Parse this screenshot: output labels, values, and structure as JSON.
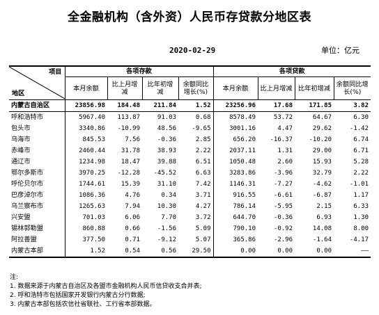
{
  "title": "全金融机构（含外资）人民币存贷款分地区表",
  "date": "2020-02-29",
  "unit": "单位：亿元",
  "header": {
    "corner_top": "项目",
    "corner_bottom": "地区",
    "deposit_group": "各项存款",
    "loan_group": "各项贷款",
    "cols": [
      "本月余额",
      "比上月增减",
      "比年初增减",
      "余额同比增长(%)",
      "本月余额",
      "比上月增减",
      "比年初增减",
      "余额同比增长(%)"
    ]
  },
  "rows": [
    {
      "region": "内蒙古自治区",
      "v": [
        "23856.98",
        "184.48",
        "211.84",
        "1.52",
        "23256.96",
        "17.68",
        "171.85",
        "3.82"
      ]
    },
    {
      "region": "呼和浩特市",
      "v": [
        "5967.40",
        "113.87",
        "91.03",
        "0.68",
        "8578.49",
        "53.72",
        "64.67",
        "6.30"
      ]
    },
    {
      "region": "包头市",
      "v": [
        "3340.86",
        "-10.99",
        "48.56",
        "-9.65",
        "3001.16",
        "4.47",
        "29.62",
        "-1.42"
      ]
    },
    {
      "region": "乌海市",
      "v": [
        "845.53",
        "7.56",
        "-0.36",
        "2.85",
        "656.20",
        "-16.37",
        "-10.20",
        "6.74"
      ]
    },
    {
      "region": "赤峰市",
      "v": [
        "2460.44",
        "31.78",
        "38.93",
        "2.22",
        "2037.11",
        "1.31",
        "29.00",
        "6.71"
      ]
    },
    {
      "region": "通辽市",
      "v": [
        "1234.98",
        "18.47",
        "39.88",
        "6.51",
        "1050.48",
        "2.60",
        "15.93",
        "5.28"
      ]
    },
    {
      "region": "鄂尔多斯市",
      "v": [
        "3970.25",
        "-12.28",
        "-45.52",
        "6.63",
        "3283.86",
        "-3.96",
        "32.79",
        "2.22"
      ]
    },
    {
      "region": "呼伦贝尔市",
      "v": [
        "1744.61",
        "15.39",
        "31.10",
        "7.42",
        "1146.31",
        "-7.27",
        "-4.62",
        "-1.01"
      ]
    },
    {
      "region": "巴彦淖尔市",
      "v": [
        "1086.36",
        "4.76",
        "0.34",
        "3.71",
        "916.55",
        "-6.61",
        "-6.87",
        "1.17"
      ]
    },
    {
      "region": "乌兰察布市",
      "v": [
        "1265.63",
        "7.94",
        "10.30",
        "4.27",
        "786.14",
        "-5.95",
        "2.15",
        "6.33"
      ]
    },
    {
      "region": "兴安盟",
      "v": [
        "701.03",
        "6.06",
        "7.70",
        "3.72",
        "644.70",
        "-0.36",
        "6.93",
        "1.30"
      ]
    },
    {
      "region": "锡林郭勒盟",
      "v": [
        "860.88",
        "0.66",
        "-1.56",
        "5.09",
        "790.10",
        "-0.92",
        "14.08",
        "8.00"
      ]
    },
    {
      "region": "阿拉善盟",
      "v": [
        "377.50",
        "0.71",
        "-9.12",
        "5.07",
        "365.86",
        "-2.96",
        "-1.64",
        "-4.17"
      ]
    },
    {
      "region": "内蒙古本部",
      "v": [
        "1.52",
        "0.54",
        "0.56",
        "29.50",
        "0.00",
        "0.00",
        "0.00",
        "——"
      ]
    }
  ],
  "notes": [
    "注:",
    "1. 数据来源于内蒙古自治区及各盟市金融机构人民币信贷收支合并表;",
    "2. 呼和浩特市包括国家开发银行内蒙古分行数据;",
    "3. 内蒙古本部包括农信社省联社、工行省本部数据。"
  ]
}
